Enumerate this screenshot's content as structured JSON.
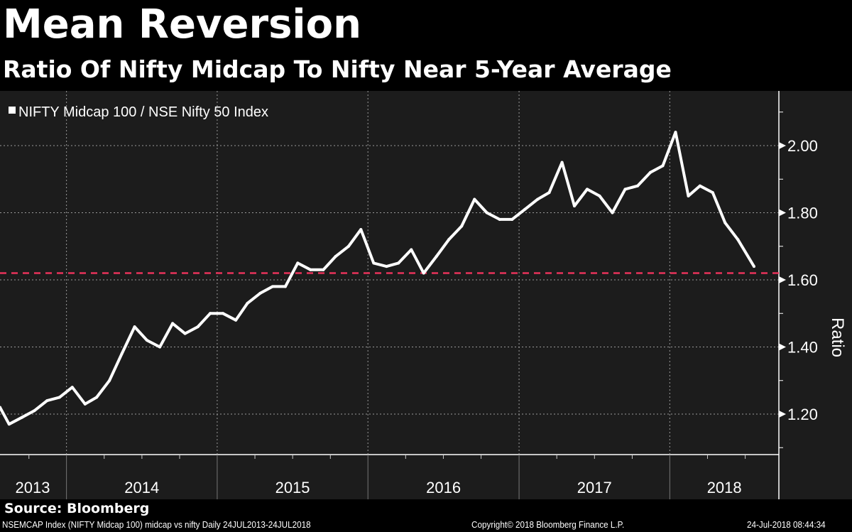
{
  "title": "Mean Reversion",
  "subtitle": "Ratio Of Nifty Midcap To Nifty Near 5-Year Average",
  "source": "Source: Bloomberg",
  "footer": {
    "left": "NSEMCAP Index (NIFTY Midcap 100) midcap vs nifty  Daily 24JUL2013-24JUL2018",
    "center": "Copyright© 2018 Bloomberg Finance L.P.",
    "right": "24-Jul-2018 08:44:34"
  },
  "chart_data": {
    "type": "line",
    "title": "Mean Reversion",
    "subtitle": "Ratio Of Nifty Midcap To Nifty Near 5-Year Average",
    "ylabel": "Ratio",
    "xlabel": "",
    "ylim": [
      1.08,
      2.15
    ],
    "xlim": [
      "2013-07-24",
      "2018-07-24"
    ],
    "yticks": [
      "1.20",
      "1.40",
      "1.60",
      "1.80",
      "2.00"
    ],
    "xticks": [
      "2013",
      "2014",
      "2015",
      "2016",
      "2017",
      "2018"
    ],
    "grid": true,
    "legend": "top-left",
    "colors": {
      "line": "#ffffff",
      "reference": "#e8325a",
      "background": "#1c1c1c"
    },
    "reference_line": {
      "value": 1.62,
      "style": "dashed"
    },
    "series": [
      {
        "name": "NIFTY Midcap 100 / NSE Nifty 50 Index",
        "x": [
          "2013-07-24",
          "2013-08",
          "2013-09",
          "2013-10",
          "2013-11",
          "2013-12",
          "2014-01",
          "2014-02",
          "2014-03",
          "2014-04",
          "2014-05",
          "2014-06",
          "2014-07",
          "2014-08",
          "2014-09",
          "2014-10",
          "2014-11",
          "2014-12",
          "2015-01",
          "2015-02",
          "2015-03",
          "2015-04",
          "2015-05",
          "2015-06",
          "2015-07",
          "2015-08",
          "2015-09",
          "2015-10",
          "2015-11",
          "2015-12",
          "2016-01",
          "2016-02",
          "2016-03",
          "2016-04",
          "2016-05",
          "2016-06",
          "2016-07",
          "2016-08",
          "2016-09",
          "2016-10",
          "2016-11",
          "2016-12",
          "2017-01",
          "2017-02",
          "2017-03",
          "2017-04",
          "2017-05",
          "2017-06",
          "2017-07",
          "2017-08",
          "2017-09",
          "2017-10",
          "2017-11",
          "2017-12",
          "2018-01",
          "2018-02",
          "2018-03",
          "2018-04",
          "2018-05",
          "2018-06",
          "2018-07-24"
        ],
        "values": [
          1.22,
          1.17,
          1.19,
          1.21,
          1.24,
          1.25,
          1.28,
          1.23,
          1.25,
          1.3,
          1.38,
          1.46,
          1.42,
          1.4,
          1.47,
          1.44,
          1.46,
          1.5,
          1.5,
          1.48,
          1.53,
          1.56,
          1.58,
          1.58,
          1.65,
          1.63,
          1.63,
          1.67,
          1.7,
          1.75,
          1.65,
          1.64,
          1.65,
          1.69,
          1.62,
          1.67,
          1.72,
          1.76,
          1.84,
          1.8,
          1.78,
          1.78,
          1.81,
          1.84,
          1.86,
          1.95,
          1.82,
          1.87,
          1.85,
          1.8,
          1.87,
          1.88,
          1.92,
          1.94,
          2.04,
          1.85,
          1.88,
          1.86,
          1.77,
          1.72,
          1.64
        ]
      }
    ]
  }
}
